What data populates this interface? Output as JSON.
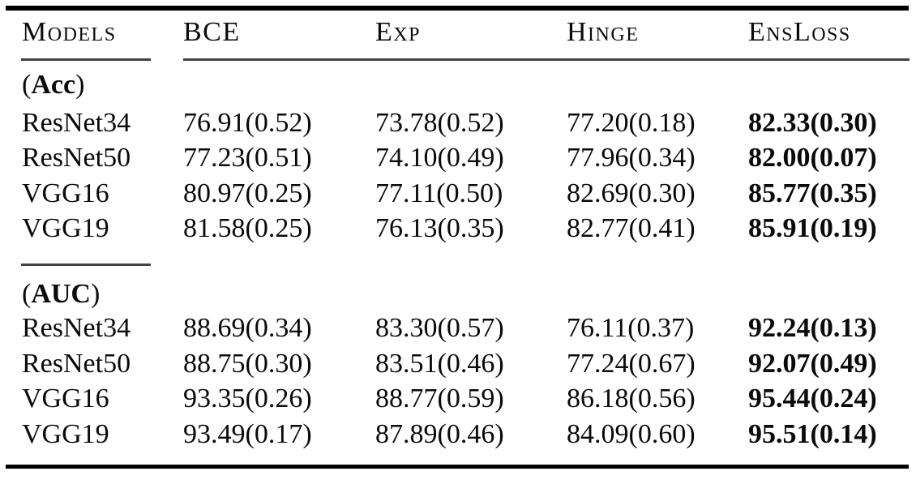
{
  "table": {
    "header": {
      "models": "Models",
      "bce": "BCE",
      "exp": "Exp",
      "hinge": "Hinge",
      "ensloss": "EnsLoss"
    },
    "sections": [
      {
        "label_open": "(",
        "label": "Acc",
        "label_close": ")",
        "rows": [
          {
            "model": "ResNet34",
            "bce": "76.91(0.52)",
            "exp": "73.78(0.52)",
            "hinge": "77.20(0.18)",
            "ensloss": "82.33(0.30)"
          },
          {
            "model": "ResNet50",
            "bce": "77.23(0.51)",
            "exp": "74.10(0.49)",
            "hinge": "77.96(0.34)",
            "ensloss": "82.00(0.07)"
          },
          {
            "model": "VGG16",
            "bce": "80.97(0.25)",
            "exp": "77.11(0.50)",
            "hinge": "82.69(0.30)",
            "ensloss": "85.77(0.35)"
          },
          {
            "model": "VGG19",
            "bce": "81.58(0.25)",
            "exp": "76.13(0.35)",
            "hinge": "82.77(0.41)",
            "ensloss": "85.91(0.19)"
          }
        ]
      },
      {
        "label_open": "(",
        "label": "AUC",
        "label_close": ")",
        "rows": [
          {
            "model": "ResNet34",
            "bce": "88.69(0.34)",
            "exp": "83.30(0.57)",
            "hinge": "76.11(0.37)",
            "ensloss": "92.24(0.13)"
          },
          {
            "model": "ResNet50",
            "bce": "88.75(0.30)",
            "exp": "83.51(0.46)",
            "hinge": "77.24(0.67)",
            "ensloss": "92.07(0.49)"
          },
          {
            "model": "VGG16",
            "bce": "93.35(0.26)",
            "exp": "88.77(0.59)",
            "hinge": "86.18(0.56)",
            "ensloss": "95.44(0.24)"
          },
          {
            "model": "VGG19",
            "bce": "93.49(0.17)",
            "exp": "87.89(0.46)",
            "hinge": "84.09(0.60)",
            "ensloss": "95.51(0.14)"
          }
        ]
      }
    ],
    "colors": {
      "text": "#0a0a0a",
      "heavy_rule": "#000000",
      "light_rule": "#414141"
    }
  }
}
